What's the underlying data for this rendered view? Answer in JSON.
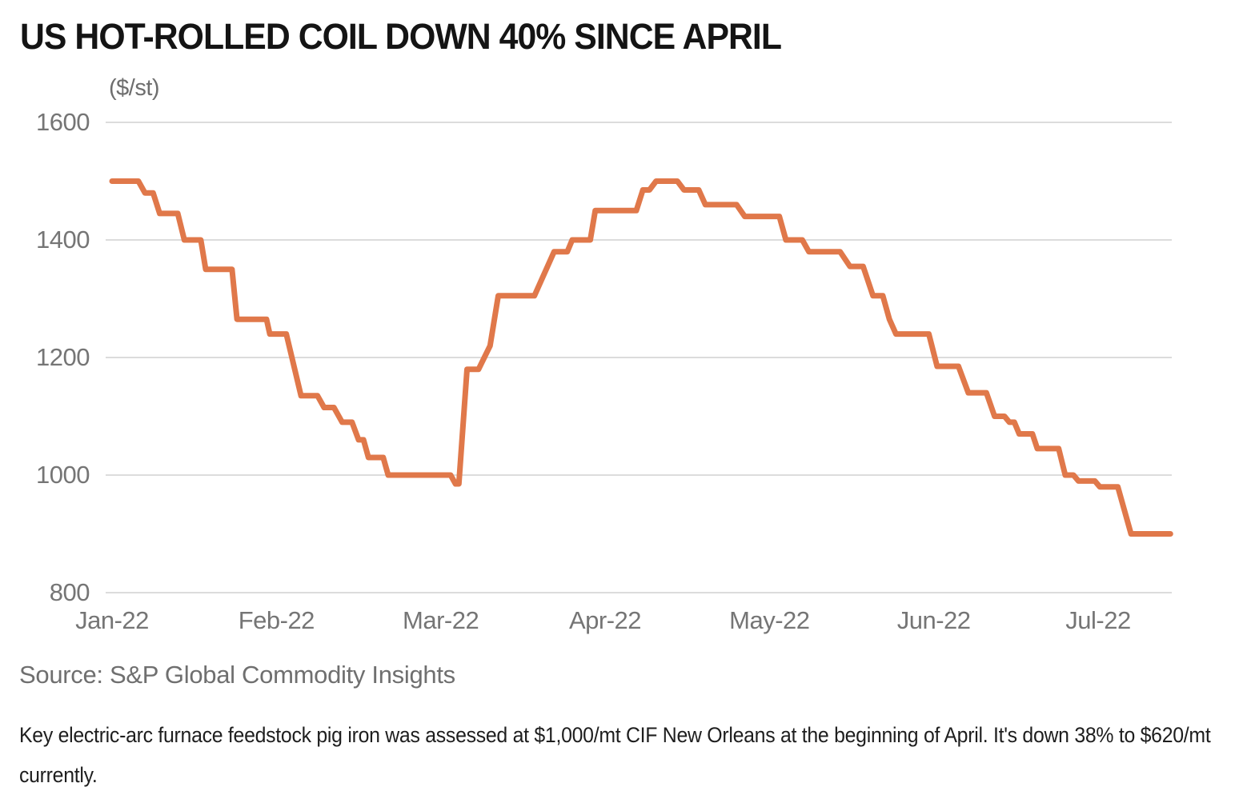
{
  "title": "US HOT-ROLLED COIL DOWN 40% SINCE APRIL",
  "source": "Source: S&P Global Commodity Insights",
  "footnote": "Key electric-arc furnace feedstock pig iron was assessed at $1,000/mt CIF New Orleans at the beginning of April. It's down 38% to $620/mt currently.",
  "colors": {
    "line": "#E0784A",
    "grid": "#DCDCDC",
    "tick_text": "#757575",
    "title_text": "#141414",
    "source_text": "#6F6F6F",
    "footnote_text": "#1E1E1E",
    "background": "#FFFFFF"
  },
  "chart_data": {
    "type": "line",
    "title": "US HOT-ROLLED COIL DOWN 40% SINCE APRIL",
    "xlabel": "",
    "ylabel": "($/st)",
    "x_ticks": [
      "Jan-22",
      "Feb-22",
      "Mar-22",
      "Apr-22",
      "May-22",
      "Jun-22",
      "Jul-22"
    ],
    "y_ticks": [
      1600,
      1400,
      1200,
      1000,
      800
    ],
    "ylim": [
      800,
      1600
    ],
    "xlim_months": [
      0,
      6.45
    ],
    "grid": "horizontal",
    "legend": "none",
    "series": [
      {
        "name": "US hot-rolled coil price ($/st)",
        "x_unit": "months since Jan-22",
        "points": [
          [
            0.0,
            1500
          ],
          [
            0.16,
            1500
          ],
          [
            0.2,
            1480
          ],
          [
            0.25,
            1480
          ],
          [
            0.29,
            1445
          ],
          [
            0.4,
            1445
          ],
          [
            0.44,
            1400
          ],
          [
            0.54,
            1400
          ],
          [
            0.57,
            1350
          ],
          [
            0.73,
            1350
          ],
          [
            0.76,
            1265
          ],
          [
            0.94,
            1265
          ],
          [
            0.96,
            1240
          ],
          [
            1.06,
            1240
          ],
          [
            1.15,
            1135
          ],
          [
            1.25,
            1135
          ],
          [
            1.27,
            1125
          ],
          [
            1.29,
            1115
          ],
          [
            1.35,
            1115
          ],
          [
            1.37,
            1105
          ],
          [
            1.4,
            1090
          ],
          [
            1.46,
            1090
          ],
          [
            1.5,
            1060
          ],
          [
            1.53,
            1060
          ],
          [
            1.56,
            1030
          ],
          [
            1.65,
            1030
          ],
          [
            1.68,
            1000
          ],
          [
            2.06,
            1000
          ],
          [
            2.09,
            985
          ],
          [
            2.11,
            985
          ],
          [
            2.16,
            1180
          ],
          [
            2.23,
            1180
          ],
          [
            2.3,
            1220
          ],
          [
            2.35,
            1305
          ],
          [
            2.57,
            1305
          ],
          [
            2.61,
            1330
          ],
          [
            2.69,
            1380
          ],
          [
            2.77,
            1380
          ],
          [
            2.8,
            1400
          ],
          [
            2.91,
            1400
          ],
          [
            2.94,
            1450
          ],
          [
            3.19,
            1450
          ],
          [
            3.23,
            1485
          ],
          [
            3.27,
            1485
          ],
          [
            3.31,
            1500
          ],
          [
            3.44,
            1500
          ],
          [
            3.48,
            1485
          ],
          [
            3.57,
            1485
          ],
          [
            3.61,
            1460
          ],
          [
            3.8,
            1460
          ],
          [
            3.85,
            1440
          ],
          [
            4.06,
            1440
          ],
          [
            4.1,
            1400
          ],
          [
            4.2,
            1400
          ],
          [
            4.24,
            1380
          ],
          [
            4.43,
            1380
          ],
          [
            4.49,
            1355
          ],
          [
            4.57,
            1355
          ],
          [
            4.63,
            1305
          ],
          [
            4.69,
            1305
          ],
          [
            4.73,
            1265
          ],
          [
            4.77,
            1240
          ],
          [
            4.97,
            1240
          ],
          [
            5.02,
            1185
          ],
          [
            5.15,
            1185
          ],
          [
            5.21,
            1140
          ],
          [
            5.32,
            1140
          ],
          [
            5.37,
            1100
          ],
          [
            5.43,
            1100
          ],
          [
            5.46,
            1090
          ],
          [
            5.49,
            1090
          ],
          [
            5.52,
            1070
          ],
          [
            5.6,
            1070
          ],
          [
            5.63,
            1045
          ],
          [
            5.76,
            1045
          ],
          [
            5.8,
            1000
          ],
          [
            5.85,
            1000
          ],
          [
            5.88,
            990
          ],
          [
            5.98,
            990
          ],
          [
            6.01,
            980
          ],
          [
            6.12,
            980
          ],
          [
            6.2,
            900
          ],
          [
            6.44,
            900
          ]
        ]
      }
    ]
  }
}
